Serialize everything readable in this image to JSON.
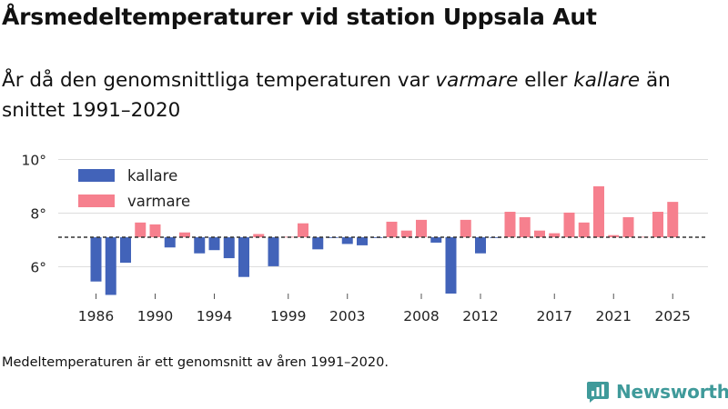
{
  "title": "Årsmedeltemperaturer vid station Uppsala Aut",
  "subtitle": {
    "part1": "År då den genomsnittliga temperaturen var ",
    "warm_word": "varmare",
    "part2": " eller ",
    "cold_word": "kallare",
    "part3": " än snittet 1991–2020"
  },
  "footnote": "Medeltemperaturen är ett genomsnitt av åren 1991–2020.",
  "logo": {
    "text": "Newsworthy",
    "icon": "bar-chart-logo-icon",
    "color": "#3f9a9a"
  },
  "colors": {
    "colder": "#4263b9",
    "warmer": "#f6808e",
    "grid": "#dddddd",
    "reference": "#333333"
  },
  "chart_data": {
    "type": "bar",
    "reference_value": 7.1,
    "ylim": [
      5.0,
      10.2
    ],
    "y_ticks": [
      6,
      8,
      10
    ],
    "y_tick_labels": [
      "6°",
      "8°",
      "10°"
    ],
    "x_ticks": [
      1986,
      1990,
      1994,
      1999,
      2003,
      2008,
      2012,
      2017,
      2021,
      2025
    ],
    "legend": [
      {
        "key": "colder",
        "label": "kallare"
      },
      {
        "key": "warmer",
        "label": "varmare"
      }
    ],
    "legend_position": "top-left",
    "categories": [
      1986,
      1987,
      1988,
      1989,
      1990,
      1991,
      1992,
      1993,
      1994,
      1995,
      1996,
      1997,
      1998,
      1999,
      2000,
      2001,
      2002,
      2003,
      2004,
      2005,
      2006,
      2007,
      2008,
      2009,
      2010,
      2011,
      2012,
      2013,
      2014,
      2015,
      2016,
      2017,
      2018,
      2019,
      2020,
      2021,
      2022,
      2023,
      2024,
      2025
    ],
    "values": [
      5.45,
      4.95,
      6.15,
      7.65,
      7.58,
      6.72,
      7.28,
      6.5,
      6.62,
      6.32,
      5.62,
      7.22,
      6.02,
      7.12,
      7.62,
      6.65,
      7.08,
      6.85,
      6.8,
      7.08,
      7.68,
      7.35,
      7.75,
      6.9,
      5.0,
      7.75,
      6.5,
      7.08,
      8.05,
      7.85,
      7.35,
      7.25,
      8.02,
      7.65,
      9.0,
      7.18,
      7.85,
      7.12,
      8.05,
      8.42
    ]
  }
}
